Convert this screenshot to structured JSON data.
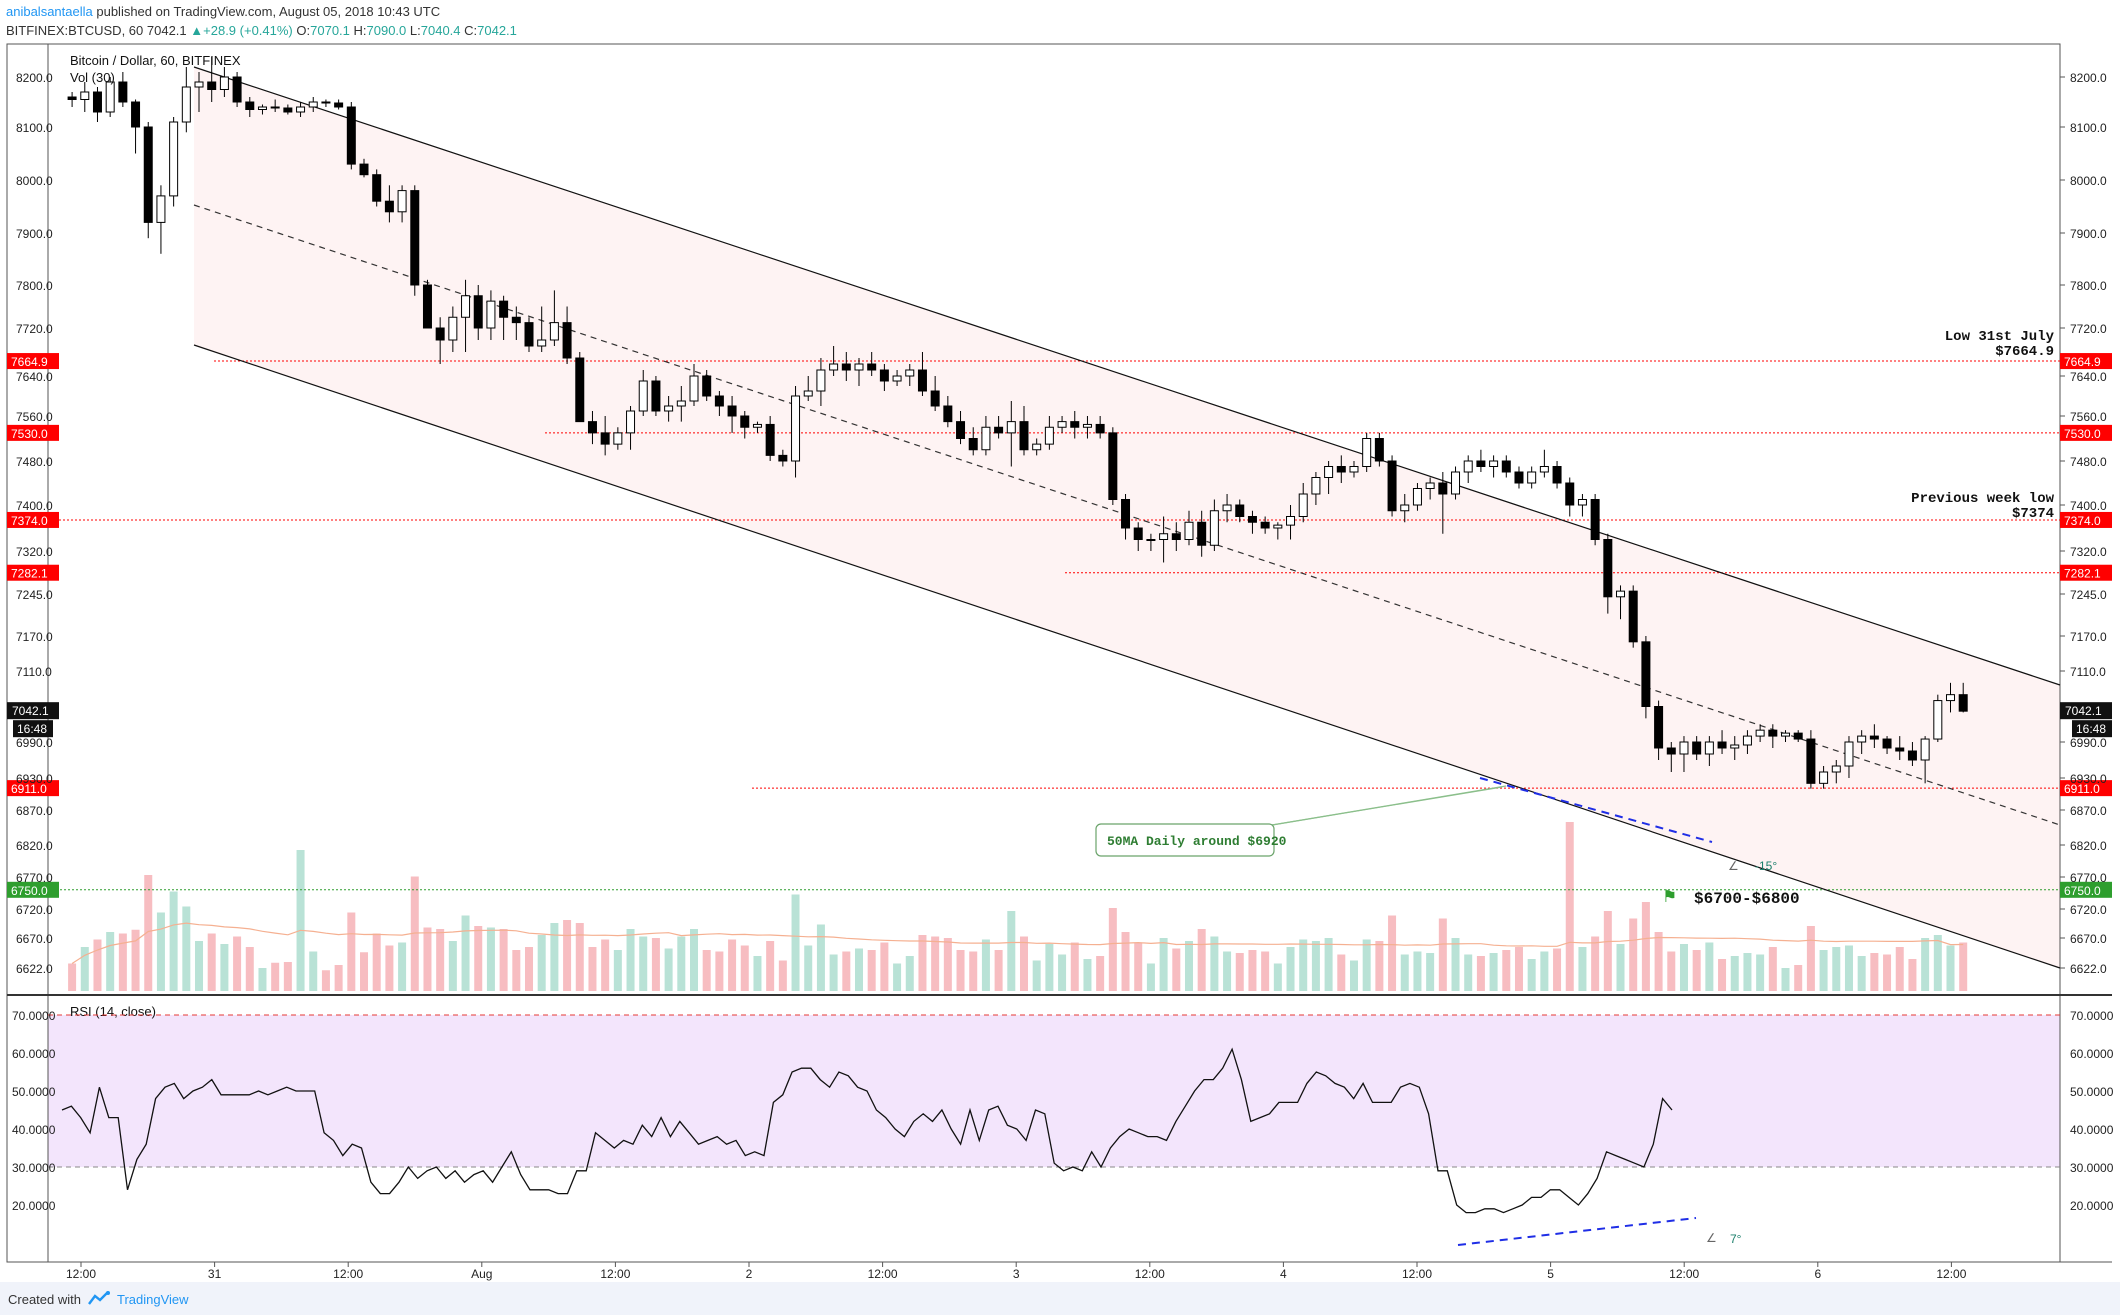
{
  "header": {
    "author": "anibalsantaella",
    "published": "published on TradingView.com, August 05, 2018 10:43 UTC",
    "symbol": "BITFINEX:BTCUSD, 60",
    "last": "7042.1",
    "change": "+28.9 (+0.41%)",
    "o_label": "O:",
    "o": "7070.1",
    "h_label": "H:",
    "h": "7090.0",
    "l_label": "L:",
    "l": "7040.4",
    "c_label": "C:",
    "c": "7042.1"
  },
  "footer": {
    "created": "Created with",
    "brand": "TradingView"
  },
  "colors": {
    "up_volume": "#b9e2d6",
    "down_volume": "#f7bdc1",
    "level_red": "#ff0000",
    "level_green": "#2e9e2e",
    "channel_fill": "#fef3f3",
    "rsi_band": "#f3e5fc",
    "trend_blue": "#1f2ee6"
  },
  "chart_data": [
    {
      "type": "candlestick",
      "title": "Bitcoin / Dollar, 60, BITFINEX",
      "volume_label": "Vol (30)",
      "ylim": [
        6582,
        8250
      ],
      "y_ticks": [
        8200.0,
        8100.0,
        8000.0,
        7900.0,
        7800.0,
        7720.0,
        7640.0,
        7560.0,
        7480.0,
        7400.0,
        7320.0,
        7245.0,
        7170.0,
        7110.0,
        6990.0,
        6930.0,
        6870.0,
        6820.0,
        6770.0,
        6720.0,
        6670.0,
        6622.0
      ],
      "y_ticks_right": [
        8200.0,
        8100.0,
        8000.0,
        7900.0,
        7800.0,
        7720.0,
        7640.0,
        7560.0,
        7480.0,
        7400.0,
        7320.0,
        7245.0,
        7170.0,
        7110.0,
        6990.0,
        6930.0,
        6870.0,
        6820.0,
        6770.0,
        6720.0,
        6670.0,
        6622.0
      ],
      "x_ticks": [
        "12:00",
        "31",
        "12:00",
        "Aug",
        "12:00",
        "2",
        "12:00",
        "3",
        "12:00",
        "4",
        "12:00",
        "5",
        "12:00",
        "6",
        "12:00"
      ],
      "x_tick_hours": [
        12,
        24,
        36,
        48,
        60,
        72,
        84,
        96,
        108,
        120,
        132,
        144,
        156,
        168,
        180
      ],
      "x_start_hour": 11.2,
      "candles": [
        [
          8160,
          8170,
          8140,
          8155
        ],
        [
          8155,
          8190,
          8130,
          8170
        ],
        [
          8170,
          8180,
          8110,
          8130
        ],
        [
          8130,
          8200,
          8120,
          8190
        ],
        [
          8190,
          8210,
          8140,
          8150
        ],
        [
          8150,
          8155,
          8050,
          8100
        ],
        [
          8100,
          8110,
          7890,
          7920
        ],
        [
          7920,
          7990,
          7860,
          7970
        ],
        [
          7970,
          8120,
          7950,
          8110
        ],
        [
          8110,
          8220,
          8090,
          8180
        ],
        [
          8180,
          8210,
          8130,
          8190
        ],
        [
          8190,
          8240,
          8150,
          8175
        ],
        [
          8175,
          8220,
          8160,
          8200
        ],
        [
          8200,
          8210,
          8140,
          8150
        ],
        [
          8150,
          8160,
          8120,
          8135
        ],
        [
          8135,
          8145,
          8125,
          8140
        ],
        [
          8140,
          8155,
          8130,
          8138
        ],
        [
          8138,
          8145,
          8125,
          8130
        ],
        [
          8130,
          8150,
          8120,
          8140
        ],
        [
          8140,
          8160,
          8130,
          8150
        ],
        [
          8150,
          8155,
          8140,
          8148
        ],
        [
          8148,
          8155,
          8135,
          8140
        ],
        [
          8140,
          8150,
          8020,
          8030
        ],
        [
          8030,
          8040,
          8005,
          8010
        ],
        [
          8010,
          8020,
          7950,
          7960
        ],
        [
          7960,
          7990,
          7920,
          7940
        ],
        [
          7940,
          7990,
          7920,
          7980
        ],
        [
          7980,
          7990,
          7780,
          7800
        ],
        [
          7800,
          7810,
          7720,
          7720
        ],
        [
          7720,
          7740,
          7660,
          7700
        ],
        [
          7700,
          7760,
          7680,
          7740
        ],
        [
          7740,
          7810,
          7680,
          7780
        ],
        [
          7780,
          7800,
          7700,
          7720
        ],
        [
          7720,
          7790,
          7700,
          7770
        ],
        [
          7770,
          7780,
          7700,
          7740
        ],
        [
          7740,
          7760,
          7700,
          7730
        ],
        [
          7730,
          7740,
          7680,
          7690
        ],
        [
          7690,
          7760,
          7680,
          7700
        ],
        [
          7700,
          7790,
          7690,
          7730
        ],
        [
          7730,
          7760,
          7660,
          7670
        ],
        [
          7670,
          7680,
          7560,
          7550
        ],
        [
          7550,
          7570,
          7510,
          7530
        ],
        [
          7530,
          7560,
          7490,
          7510
        ],
        [
          7510,
          7540,
          7500,
          7530
        ],
        [
          7530,
          7580,
          7500,
          7570
        ],
        [
          7570,
          7650,
          7560,
          7630
        ],
        [
          7630,
          7640,
          7560,
          7570
        ],
        [
          7570,
          7600,
          7550,
          7580
        ],
        [
          7580,
          7620,
          7550,
          7590
        ],
        [
          7590,
          7660,
          7580,
          7640
        ],
        [
          7640,
          7650,
          7590,
          7600
        ],
        [
          7600,
          7610,
          7560,
          7580
        ],
        [
          7580,
          7600,
          7530,
          7560
        ],
        [
          7560,
          7570,
          7520,
          7540
        ],
        [
          7540,
          7550,
          7530,
          7545
        ],
        [
          7545,
          7560,
          7480,
          7490
        ],
        [
          7490,
          7500,
          7470,
          7480
        ],
        [
          7480,
          7620,
          7450,
          7600
        ],
        [
          7600,
          7640,
          7590,
          7610
        ],
        [
          7610,
          7670,
          7580,
          7650
        ],
        [
          7650,
          7690,
          7640,
          7660
        ],
        [
          7660,
          7680,
          7630,
          7650
        ],
        [
          7650,
          7670,
          7620,
          7660
        ],
        [
          7660,
          7680,
          7640,
          7650
        ],
        [
          7650,
          7660,
          7610,
          7630
        ],
        [
          7630,
          7650,
          7620,
          7640
        ],
        [
          7640,
          7660,
          7620,
          7650
        ],
        [
          7650,
          7680,
          7600,
          7610
        ],
        [
          7610,
          7640,
          7570,
          7580
        ],
        [
          7580,
          7600,
          7540,
          7550
        ],
        [
          7550,
          7570,
          7510,
          7520
        ],
        [
          7520,
          7540,
          7490,
          7500
        ],
        [
          7500,
          7560,
          7490,
          7540
        ],
        [
          7540,
          7560,
          7520,
          7530
        ],
        [
          7530,
          7590,
          7470,
          7550
        ],
        [
          7550,
          7580,
          7490,
          7500
        ],
        [
          7500,
          7520,
          7490,
          7510
        ],
        [
          7510,
          7560,
          7500,
          7540
        ],
        [
          7540,
          7560,
          7530,
          7550
        ],
        [
          7550,
          7570,
          7520,
          7540
        ],
        [
          7540,
          7560,
          7520,
          7545
        ],
        [
          7545,
          7560,
          7520,
          7530
        ],
        [
          7530,
          7540,
          7400,
          7410
        ],
        [
          7410,
          7420,
          7340,
          7360
        ],
        [
          7360,
          7370,
          7320,
          7340
        ],
        [
          7340,
          7350,
          7320,
          7340
        ],
        [
          7340,
          7380,
          7300,
          7350
        ],
        [
          7350,
          7370,
          7320,
          7340
        ],
        [
          7340,
          7390,
          7330,
          7370
        ],
        [
          7370,
          7390,
          7310,
          7330
        ],
        [
          7330,
          7410,
          7320,
          7390
        ],
        [
          7390,
          7420,
          7370,
          7400
        ],
        [
          7400,
          7410,
          7370,
          7380
        ],
        [
          7380,
          7390,
          7350,
          7370
        ],
        [
          7370,
          7380,
          7350,
          7360
        ],
        [
          7360,
          7370,
          7340,
          7365
        ],
        [
          7365,
          7400,
          7340,
          7380
        ],
        [
          7380,
          7440,
          7370,
          7420
        ],
        [
          7420,
          7460,
          7400,
          7450
        ],
        [
          7450,
          7480,
          7420,
          7470
        ],
        [
          7470,
          7490,
          7440,
          7460
        ],
        [
          7460,
          7480,
          7450,
          7470
        ],
        [
          7470,
          7530,
          7460,
          7520
        ],
        [
          7520,
          7530,
          7470,
          7480
        ],
        [
          7480,
          7490,
          7380,
          7390
        ],
        [
          7390,
          7420,
          7370,
          7400
        ],
        [
          7400,
          7440,
          7390,
          7430
        ],
        [
          7430,
          7450,
          7410,
          7440
        ],
        [
          7440,
          7460,
          7350,
          7420
        ],
        [
          7420,
          7470,
          7410,
          7460
        ],
        [
          7460,
          7490,
          7440,
          7480
        ],
        [
          7480,
          7500,
          7460,
          7470
        ],
        [
          7470,
          7490,
          7450,
          7480
        ],
        [
          7480,
          7490,
          7450,
          7460
        ],
        [
          7460,
          7470,
          7430,
          7440
        ],
        [
          7440,
          7470,
          7430,
          7460
        ],
        [
          7460,
          7500,
          7450,
          7470
        ],
        [
          7470,
          7480,
          7430,
          7440
        ],
        [
          7440,
          7450,
          7380,
          7400
        ],
        [
          7400,
          7420,
          7380,
          7410
        ],
        [
          7410,
          7420,
          7330,
          7340
        ],
        [
          7340,
          7350,
          7210,
          7240
        ],
        [
          7240,
          7260,
          7200,
          7250
        ],
        [
          7250,
          7260,
          7150,
          7160
        ],
        [
          7160,
          7170,
          7030,
          7050
        ],
        [
          7050,
          7060,
          6960,
          6980
        ],
        [
          6980,
          6990,
          6940,
          6970
        ],
        [
          6970,
          7000,
          6940,
          6990
        ],
        [
          6990,
          7000,
          6960,
          6970
        ],
        [
          6970,
          7000,
          6950,
          6990
        ],
        [
          6990,
          7010,
          6970,
          6980
        ],
        [
          6980,
          7000,
          6960,
          6985
        ],
        [
          6985,
          7010,
          6970,
          7000
        ],
        [
          7000,
          7020,
          6990,
          7010
        ],
        [
          7010,
          7020,
          6980,
          7000
        ],
        [
          7000,
          7010,
          6990,
          7005
        ],
        [
          7005,
          7010,
          6990,
          6995
        ],
        [
          6995,
          7010,
          6910,
          6920
        ],
        [
          6920,
          6950,
          6910,
          6940
        ],
        [
          6940,
          6960,
          6920,
          6950
        ],
        [
          6950,
          7000,
          6930,
          6990
        ],
        [
          6990,
          7010,
          6970,
          7000
        ],
        [
          7000,
          7020,
          6980,
          6995
        ],
        [
          6995,
          7000,
          6970,
          6980
        ],
        [
          6980,
          7000,
          6960,
          6975
        ],
        [
          6975,
          6990,
          6950,
          6960
        ],
        [
          6960,
          7000,
          6920,
          6995
        ],
        [
          6995,
          7070,
          6990,
          7060
        ],
        [
          7060,
          7090,
          7040,
          7070
        ],
        [
          7070,
          7090,
          7040,
          7042.1
        ]
      ],
      "volume_ma": "30",
      "rsi_label": "RSI (14, close)",
      "rsi_ylim": [
        5,
        75
      ],
      "rsi_ticks": [
        70.0,
        60.0,
        50.0,
        40.0,
        30.0,
        20.0
      ],
      "rsi_ticks_right": [
        70.0,
        60.0,
        50.0,
        40.0,
        30.0,
        20.0
      ],
      "rsi_band": [
        30,
        70
      ],
      "rsi": [
        45,
        46,
        43,
        39,
        51,
        43,
        43,
        24,
        32,
        36,
        48,
        51,
        52,
        48,
        50,
        51,
        53,
        49,
        49,
        49,
        49,
        50,
        49,
        50,
        51,
        50,
        50,
        50,
        39,
        37,
        33,
        36,
        35,
        26,
        23,
        23,
        26,
        30,
        27,
        29,
        30,
        27,
        29,
        26,
        28,
        29,
        26,
        30,
        34,
        28,
        24,
        24,
        24,
        23,
        23,
        29,
        29,
        39,
        37,
        35,
        37,
        36,
        41,
        38,
        43,
        38,
        42,
        39,
        36,
        37,
        38,
        36,
        37,
        33,
        34,
        33,
        47,
        49,
        55,
        56,
        56,
        53,
        51,
        55,
        54,
        51,
        50,
        45,
        43,
        40,
        38,
        42,
        44,
        42,
        45,
        40,
        36,
        45,
        37,
        45,
        46,
        41,
        40,
        37,
        45,
        44,
        31,
        29,
        30,
        29,
        34,
        30,
        35,
        38,
        40,
        39,
        38,
        38,
        37,
        42,
        46,
        50,
        53,
        53,
        56,
        61,
        53,
        42,
        43,
        44,
        47,
        47,
        47,
        52,
        55,
        54,
        52,
        51,
        48,
        52,
        47,
        47,
        47,
        51,
        52,
        51,
        44,
        29,
        29,
        20,
        18,
        18,
        19,
        19,
        18,
        19,
        20,
        22,
        22,
        24,
        24,
        22,
        20,
        23,
        27,
        34,
        33,
        32,
        31,
        30,
        36,
        48,
        45
      ],
      "levels": [
        {
          "price": 7664.9,
          "label": "7664.9"
        },
        {
          "price": 7530.0,
          "label": "7530.0"
        },
        {
          "price": 7374.0,
          "label": "7374.0"
        },
        {
          "price": 7282.1,
          "label": "7282.1"
        },
        {
          "price": 6911.0,
          "label": "6911.0"
        },
        {
          "price": 6750.0,
          "label": "6750.0"
        }
      ],
      "last_price_label": "7042.1",
      "countdown": "16:48",
      "annotations": {
        "low_july": [
          "Low 31st July",
          "$7664.9"
        ],
        "prev_week_low": [
          "Previous week low",
          "$7374"
        ],
        "ma_note": "50MA Daily around $6920",
        "target": "$6700-$6800",
        "angle_price": "-15°",
        "angle_rsi": "7°"
      }
    }
  ]
}
